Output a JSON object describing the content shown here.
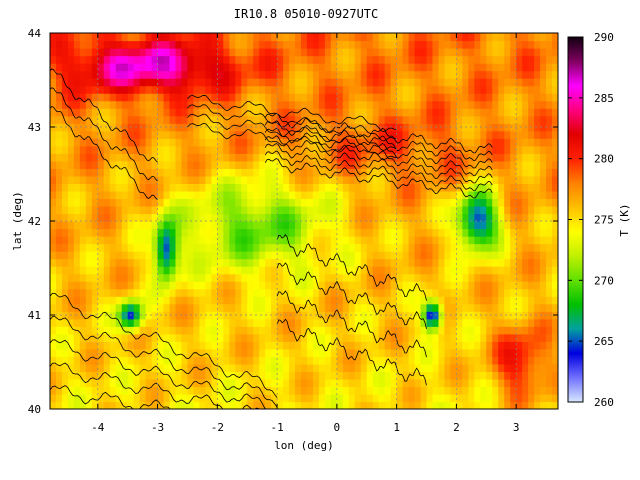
{
  "title": "IR10.8 05010-0927UTC",
  "x_axis": {
    "label": "lon (deg)",
    "min": -4.8,
    "max": 3.7,
    "ticks": [
      -4,
      -3,
      -2,
      -1,
      0,
      1,
      2,
      3
    ],
    "tick_labels": [
      "-4",
      "-3",
      "-2",
      "-1",
      "0",
      "1",
      "2",
      "3"
    ]
  },
  "y_axis": {
    "label": "lat (deg)",
    "min": 40,
    "max": 44,
    "ticks": [
      40,
      41,
      42,
      43,
      44
    ],
    "tick_labels": [
      "40",
      "41",
      "42",
      "43",
      "44"
    ]
  },
  "colorbar": {
    "label": "T (K)",
    "min": 260,
    "max": 290,
    "ticks": [
      260,
      265,
      270,
      275,
      280,
      285,
      290
    ],
    "tick_labels": [
      "260",
      "265",
      "270",
      "275",
      "280",
      "285",
      "290"
    ],
    "colors": [
      "#d8e8ff",
      "#7070ff",
      "#0000e0",
      "#00a0a0",
      "#00c000",
      "#60e000",
      "#c0f000",
      "#ffff00",
      "#ffc000",
      "#ff8000",
      "#ff2000",
      "#e00000",
      "#ff0080",
      "#ff00ff",
      "#800060",
      "#100010"
    ]
  },
  "grid": true,
  "map_regions": [
    {
      "name": "NW warm patch",
      "lon": [
        -4.8,
        -1.5
      ],
      "lat": [
        43.3,
        44.0
      ],
      "temp": 286
    },
    {
      "name": "Pyrenees band",
      "lon": [
        -1.0,
        2.8
      ],
      "lat": [
        42.4,
        43.2
      ],
      "temp": 279
    },
    {
      "name": "Ebro green tongue",
      "lon": [
        -3.0,
        0.3
      ],
      "lat": [
        41.3,
        42.6
      ],
      "temp": 270
    },
    {
      "name": "W cold cloud 1",
      "lon": [
        -3.1,
        -2.6
      ],
      "lat": [
        41.3,
        42.1
      ],
      "temp": 263
    },
    {
      "name": "W cold cloud 2",
      "lon": [
        -3.7,
        -3.2
      ],
      "lat": [
        40.8,
        41.2
      ],
      "temp": 264
    },
    {
      "name": "NE cold cloud",
      "lon": [
        1.9,
        2.8
      ],
      "lat": [
        41.6,
        42.4
      ],
      "temp": 264
    },
    {
      "name": "SE cold cloud",
      "lon": [
        1.4,
        1.8
      ],
      "lat": [
        40.8,
        41.2
      ],
      "temp": 262
    },
    {
      "name": "SE warm sea",
      "lon": [
        2.5,
        3.7
      ],
      "lat": [
        40.0,
        41.0
      ],
      "temp": 281
    }
  ]
}
